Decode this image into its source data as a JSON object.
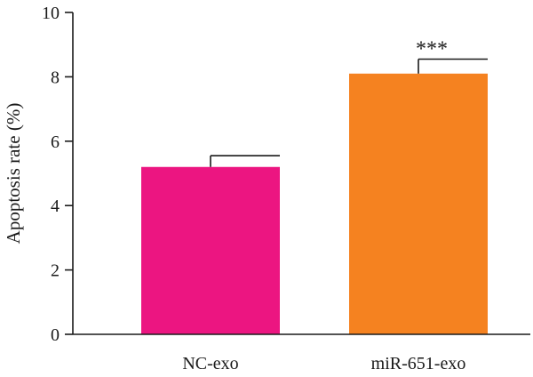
{
  "chart_data": {
    "type": "bar",
    "title": "",
    "xlabel": "",
    "ylabel": "Apoptosis rate (%)",
    "ylim": [
      0,
      10
    ],
    "yticks": [
      0,
      2,
      4,
      6,
      8,
      10
    ],
    "categories": [
      "NC-exo",
      "miR-651-exo"
    ],
    "values": [
      5.2,
      8.1
    ],
    "errors": [
      0.35,
      0.45
    ],
    "colors": [
      "#ec1581",
      "#f58220"
    ],
    "annotations": [
      "",
      "***"
    ],
    "grid": false,
    "legend": "none"
  }
}
